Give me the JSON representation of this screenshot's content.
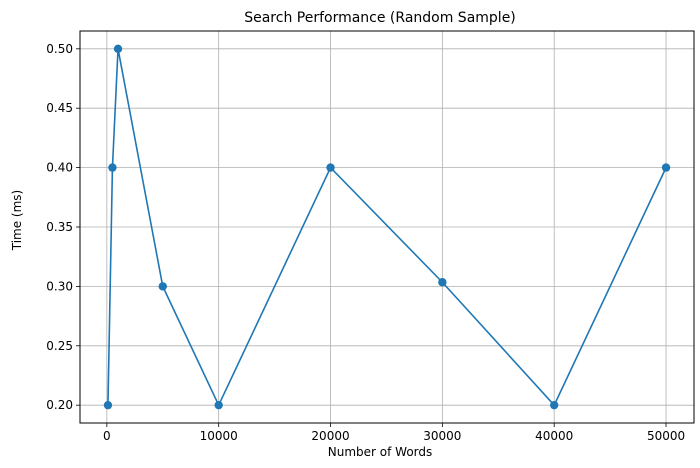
{
  "chart_data": {
    "type": "line",
    "title": "Search Performance (Random Sample)",
    "xlabel": "Number of Words",
    "ylabel": "Time (ms)",
    "x": [
      100,
      500,
      1000,
      5000,
      10000,
      20000,
      30000,
      40000,
      50000
    ],
    "series": [
      {
        "values": [
          0.2,
          0.4,
          0.5,
          0.3,
          0.2,
          0.4,
          0.3035,
          0.2,
          0.4
        ],
        "color": "#1f77b4",
        "marker": "circle"
      }
    ],
    "xlim": [
      -2400,
      52500
    ],
    "ylim": [
      0.185,
      0.515
    ],
    "xticks": [
      0,
      10000,
      20000,
      30000,
      40000,
      50000
    ],
    "xtick_labels": [
      "0",
      "10000",
      "20000",
      "30000",
      "40000",
      "50000"
    ],
    "yticks": [
      0.2,
      0.25,
      0.3,
      0.35,
      0.4,
      0.45,
      0.5
    ],
    "ytick_labels": [
      "0.20",
      "0.25",
      "0.30",
      "0.35",
      "0.40",
      "0.45",
      "0.50"
    ],
    "grid": true,
    "legend": "none"
  }
}
